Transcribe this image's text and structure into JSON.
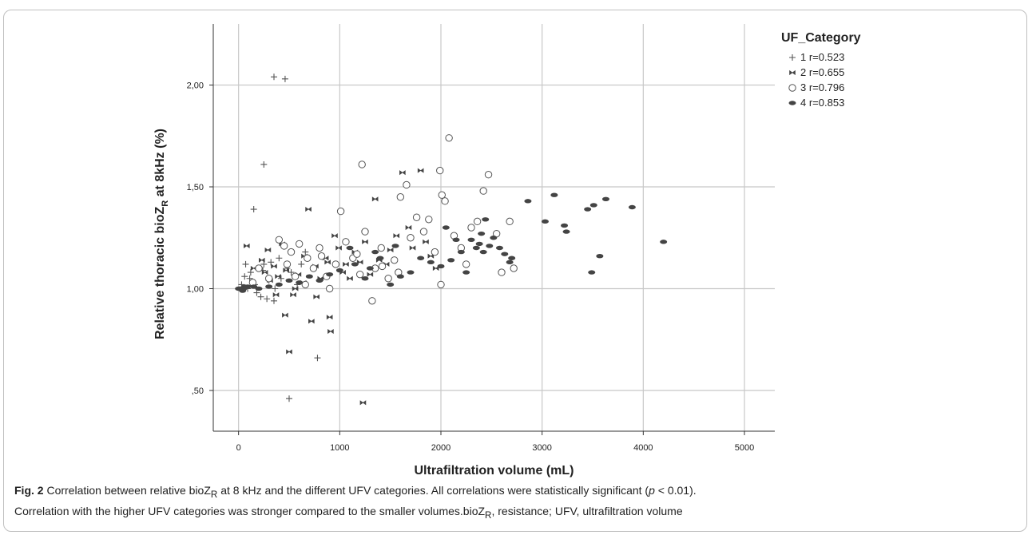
{
  "chart_data": {
    "type": "scatter",
    "xlabel": "Ultrafiltration volume (mL)",
    "ylabel_main": "Relative thoracic bioZ",
    "ylabel_sub": "R",
    "ylabel_tail": " at 8kHz (%)",
    "xlim": [
      -250,
      5300
    ],
    "ylim": [
      0.3,
      2.3
    ],
    "xticks": [
      0,
      1000,
      2000,
      3000,
      4000,
      5000
    ],
    "xtick_labels": [
      "0",
      "1000",
      "2000",
      "3000",
      "4000",
      "5000"
    ],
    "yticks": [
      0.5,
      1.0,
      1.5,
      2.0
    ],
    "ytick_labels": [
      ",50",
      "1,00",
      "1,50",
      "2,00"
    ],
    "grid": true,
    "legend_position": "top-right",
    "legend_title": "UF_Category",
    "series": [
      {
        "name": "1 r=0.523",
        "marker": "plus",
        "points": [
          [
            350,
            2.04
          ],
          [
            460,
            2.03
          ],
          [
            250,
            1.61
          ],
          [
            150,
            1.39
          ],
          [
            200,
            1.1
          ],
          [
            120,
            1.08
          ],
          [
            60,
            1.06
          ],
          [
            30,
            1.02
          ],
          [
            90,
            1.0
          ],
          [
            180,
            0.98
          ],
          [
            220,
            0.96
          ],
          [
            280,
            0.95
          ],
          [
            350,
            0.94
          ],
          [
            300,
            1.04
          ],
          [
            250,
            1.12
          ],
          [
            400,
            1.15
          ],
          [
            420,
            1.05
          ],
          [
            360,
            1.0
          ],
          [
            480,
            1.1
          ],
          [
            520,
            1.08
          ],
          [
            580,
            1.02
          ],
          [
            620,
            1.12
          ],
          [
            660,
            1.18
          ],
          [
            500,
            0.46
          ],
          [
            780,
            0.66
          ],
          [
            160,
            1.02
          ],
          [
            110,
            1.05
          ],
          [
            70,
            1.12
          ],
          [
            240,
            1.09
          ],
          [
            320,
            1.13
          ]
        ]
      },
      {
        "name": "2 r=0.655",
        "marker": "bowtie",
        "points": [
          [
            80,
            1.21
          ],
          [
            150,
            1.1
          ],
          [
            230,
            1.14
          ],
          [
            290,
            1.19
          ],
          [
            310,
            1.04
          ],
          [
            350,
            1.11
          ],
          [
            390,
            1.06
          ],
          [
            430,
            1.22
          ],
          [
            460,
            0.87
          ],
          [
            500,
            0.69
          ],
          [
            540,
            0.97
          ],
          [
            590,
            1.07
          ],
          [
            650,
            1.16
          ],
          [
            690,
            1.39
          ],
          [
            720,
            0.84
          ],
          [
            770,
            0.96
          ],
          [
            810,
            1.05
          ],
          [
            860,
            1.15
          ],
          [
            900,
            0.86
          ],
          [
            910,
            0.79
          ],
          [
            950,
            1.26
          ],
          [
            990,
            1.2
          ],
          [
            1060,
            1.12
          ],
          [
            1100,
            1.05
          ],
          [
            1150,
            1.18
          ],
          [
            1200,
            1.13
          ],
          [
            1250,
            1.23
          ],
          [
            1230,
            0.44
          ],
          [
            1300,
            1.07
          ],
          [
            1350,
            1.44
          ],
          [
            1390,
            1.14
          ],
          [
            1460,
            1.12
          ],
          [
            1500,
            1.19
          ],
          [
            1560,
            1.26
          ],
          [
            1620,
            1.57
          ],
          [
            1680,
            1.3
          ],
          [
            1720,
            1.2
          ],
          [
            1800,
            1.58
          ],
          [
            1850,
            1.23
          ],
          [
            1900,
            1.16
          ],
          [
            1950,
            1.1
          ],
          [
            1030,
            1.08
          ],
          [
            880,
            1.13
          ],
          [
            760,
            1.11
          ],
          [
            640,
            1.03
          ],
          [
            560,
            1.0
          ],
          [
            470,
            1.09
          ],
          [
            370,
            0.97
          ],
          [
            260,
            1.08
          ]
        ]
      },
      {
        "name": "3 r=0.796",
        "marker": "circle",
        "points": [
          [
            400,
            1.24
          ],
          [
            450,
            1.21
          ],
          [
            520,
            1.18
          ],
          [
            600,
            1.22
          ],
          [
            680,
            1.15
          ],
          [
            740,
            1.1
          ],
          [
            800,
            1.2
          ],
          [
            870,
            1.06
          ],
          [
            900,
            1.0
          ],
          [
            1010,
            1.38
          ],
          [
            1060,
            1.23
          ],
          [
            1130,
            1.15
          ],
          [
            1200,
            1.07
          ],
          [
            1250,
            1.28
          ],
          [
            1220,
            1.61
          ],
          [
            1320,
            0.94
          ],
          [
            1350,
            1.1
          ],
          [
            1410,
            1.2
          ],
          [
            1480,
            1.05
          ],
          [
            1540,
            1.14
          ],
          [
            1600,
            1.45
          ],
          [
            1660,
            1.51
          ],
          [
            1700,
            1.25
          ],
          [
            1760,
            1.35
          ],
          [
            1830,
            1.28
          ],
          [
            1880,
            1.34
          ],
          [
            1940,
            1.18
          ],
          [
            1990,
            1.58
          ],
          [
            2010,
            1.46
          ],
          [
            2040,
            1.43
          ],
          [
            2000,
            1.02
          ],
          [
            2080,
            1.74
          ],
          [
            2130,
            1.26
          ],
          [
            2200,
            1.2
          ],
          [
            2250,
            1.12
          ],
          [
            2300,
            1.3
          ],
          [
            2360,
            1.33
          ],
          [
            2420,
            1.48
          ],
          [
            2470,
            1.56
          ],
          [
            2550,
            1.27
          ],
          [
            2600,
            1.08
          ],
          [
            2680,
            1.33
          ],
          [
            2720,
            1.1
          ],
          [
            1580,
            1.08
          ],
          [
            1420,
            1.11
          ],
          [
            1170,
            1.17
          ],
          [
            960,
            1.12
          ],
          [
            820,
            1.16
          ],
          [
            660,
            1.02
          ],
          [
            560,
            1.06
          ],
          [
            480,
            1.12
          ],
          [
            300,
            1.05
          ],
          [
            200,
            1.1
          ],
          [
            140,
            1.03
          ]
        ]
      },
      {
        "name": "4 r=0.853",
        "marker": "ellipse",
        "points": [
          [
            0,
            1.0
          ],
          [
            20,
            1.0
          ],
          [
            40,
            0.99
          ],
          [
            60,
            1.01
          ],
          [
            50,
            1.0
          ],
          [
            30,
            1.0
          ],
          [
            10,
            1.0
          ],
          [
            90,
            1.01
          ],
          [
            2200,
            1.18
          ],
          [
            2300,
            1.24
          ],
          [
            2350,
            1.2
          ],
          [
            2400,
            1.27
          ],
          [
            2440,
            1.34
          ],
          [
            2480,
            1.21
          ],
          [
            2520,
            1.25
          ],
          [
            2580,
            1.2
          ],
          [
            2630,
            1.17
          ],
          [
            2680,
            1.13
          ],
          [
            2700,
            1.15
          ],
          [
            2250,
            1.08
          ],
          [
            2380,
            1.22
          ],
          [
            2420,
            1.18
          ],
          [
            2860,
            1.43
          ],
          [
            3030,
            1.33
          ],
          [
            3120,
            1.46
          ],
          [
            3220,
            1.31
          ],
          [
            3240,
            1.28
          ],
          [
            3450,
            1.39
          ],
          [
            3490,
            1.08
          ],
          [
            3510,
            1.41
          ],
          [
            3570,
            1.16
          ],
          [
            3630,
            1.44
          ],
          [
            3890,
            1.4
          ],
          [
            4200,
            1.23
          ],
          [
            1500,
            1.02
          ],
          [
            1700,
            1.08
          ],
          [
            1900,
            1.13
          ],
          [
            2000,
            1.11
          ],
          [
            2100,
            1.14
          ],
          [
            1800,
            1.15
          ],
          [
            1600,
            1.06
          ],
          [
            1300,
            1.1
          ],
          [
            1400,
            1.15
          ],
          [
            1250,
            1.05
          ],
          [
            1150,
            1.12
          ],
          [
            1000,
            1.09
          ],
          [
            900,
            1.07
          ],
          [
            800,
            1.04
          ],
          [
            700,
            1.06
          ],
          [
            600,
            1.03
          ],
          [
            500,
            1.04
          ],
          [
            400,
            1.02
          ],
          [
            300,
            1.01
          ],
          [
            200,
            1.0
          ],
          [
            150,
            1.01
          ],
          [
            1100,
            1.2
          ],
          [
            1350,
            1.18
          ],
          [
            1550,
            1.21
          ],
          [
            2150,
            1.24
          ],
          [
            2050,
            1.3
          ]
        ]
      }
    ]
  },
  "caption": {
    "fig_label": "Fig. 2",
    "line1_a": " Correlation between relative bioZ",
    "line1_sub": "R",
    "line1_b": " at 8 kHz and the different UFV categories. All correlations were statistically significant (",
    "line1_p": "p",
    "line1_c": " < 0.01).",
    "line2_a": "Correlation with the higher UFV categories was stronger compared to the smaller volumes.bioZ",
    "line2_sub": "R",
    "line2_b": ", resistance; UFV, ultrafiltration volume"
  }
}
